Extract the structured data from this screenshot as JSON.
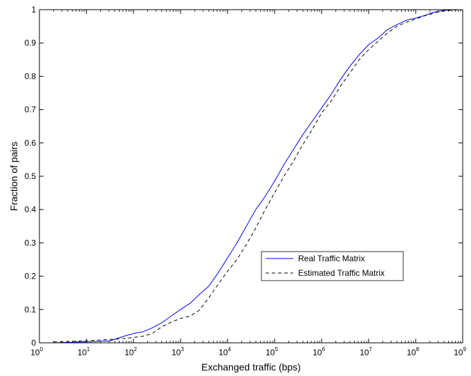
{
  "chart_data": {
    "type": "line",
    "title": "",
    "xlabel": "Exchanged traffic (bps)",
    "ylabel": "Fraction of pairs",
    "xscale": "log",
    "xlim": [
      1,
      1000000000
    ],
    "ylim": [
      0,
      1
    ],
    "grid": false,
    "legend_position": "lower-right",
    "x_ticks": [
      {
        "base": "10",
        "exp": "0",
        "value": 1
      },
      {
        "base": "10",
        "exp": "1",
        "value": 10
      },
      {
        "base": "10",
        "exp": "2",
        "value": 100
      },
      {
        "base": "10",
        "exp": "3",
        "value": 1000
      },
      {
        "base": "10",
        "exp": "4",
        "value": 10000
      },
      {
        "base": "10",
        "exp": "5",
        "value": 100000
      },
      {
        "base": "10",
        "exp": "6",
        "value": 1000000
      },
      {
        "base": "10",
        "exp": "7",
        "value": 10000000
      },
      {
        "base": "10",
        "exp": "8",
        "value": 100000000
      },
      {
        "base": "10",
        "exp": "9",
        "value": 1000000000
      }
    ],
    "y_ticks": [
      "0",
      "0.1",
      "0.2",
      "0.3",
      "0.4",
      "0.5",
      "0.6",
      "0.7",
      "0.8",
      "0.9",
      "1"
    ],
    "series": [
      {
        "name": "Real Traffic Matrix",
        "color": "#0000ff",
        "style": "solid",
        "points": [
          [
            2,
            0
          ],
          [
            10,
            0.003
          ],
          [
            31.6,
            0.006
          ],
          [
            63,
            0.02
          ],
          [
            100,
            0.028
          ],
          [
            158,
            0.033
          ],
          [
            251,
            0.045
          ],
          [
            398,
            0.06
          ],
          [
            631,
            0.08
          ],
          [
            1000,
            0.1
          ],
          [
            1585,
            0.118
          ],
          [
            2512,
            0.145
          ],
          [
            3981,
            0.17
          ],
          [
            6310,
            0.21
          ],
          [
            10000,
            0.255
          ],
          [
            15849,
            0.3
          ],
          [
            25119,
            0.35
          ],
          [
            39811,
            0.4
          ],
          [
            63096,
            0.44
          ],
          [
            100000,
            0.485
          ],
          [
            158489,
            0.535
          ],
          [
            251189,
            0.58
          ],
          [
            398107,
            0.625
          ],
          [
            630957,
            0.665
          ],
          [
            1000000,
            0.705
          ],
          [
            1584893,
            0.745
          ],
          [
            2511886,
            0.79
          ],
          [
            3981072,
            0.83
          ],
          [
            6309573,
            0.865
          ],
          [
            10000000,
            0.895
          ],
          [
            15848932,
            0.915
          ],
          [
            25118864,
            0.94
          ],
          [
            39810717,
            0.955
          ],
          [
            63095734,
            0.968
          ],
          [
            100000000,
            0.975
          ],
          [
            158489319,
            0.983
          ],
          [
            251188643,
            0.993
          ],
          [
            398107171,
            0.998
          ],
          [
            630957344,
            1.0
          ],
          [
            1000000000,
            1.0
          ]
        ]
      },
      {
        "name": "Estimated Traffic Matrix",
        "color": "#000000",
        "style": "dashed",
        "points": [
          [
            2,
            0.003
          ],
          [
            10,
            0.006
          ],
          [
            31.6,
            0.01
          ],
          [
            63,
            0.013
          ],
          [
            100,
            0.016
          ],
          [
            158,
            0.02
          ],
          [
            251,
            0.028
          ],
          [
            398,
            0.048
          ],
          [
            631,
            0.062
          ],
          [
            1000,
            0.073
          ],
          [
            1585,
            0.08
          ],
          [
            2512,
            0.098
          ],
          [
            3981,
            0.135
          ],
          [
            6310,
            0.175
          ],
          [
            10000,
            0.215
          ],
          [
            15849,
            0.25
          ],
          [
            25119,
            0.295
          ],
          [
            39811,
            0.345
          ],
          [
            63096,
            0.4
          ],
          [
            100000,
            0.45
          ],
          [
            158489,
            0.5
          ],
          [
            251189,
            0.545
          ],
          [
            398107,
            0.595
          ],
          [
            630957,
            0.64
          ],
          [
            1000000,
            0.69
          ],
          [
            1584893,
            0.725
          ],
          [
            2511886,
            0.77
          ],
          [
            3981072,
            0.81
          ],
          [
            6309573,
            0.85
          ],
          [
            10000000,
            0.88
          ],
          [
            15848932,
            0.905
          ],
          [
            25118864,
            0.93
          ],
          [
            39810717,
            0.95
          ],
          [
            63095734,
            0.962
          ],
          [
            100000000,
            0.972
          ],
          [
            158489319,
            0.982
          ],
          [
            251188643,
            0.99
          ],
          [
            398107171,
            0.996
          ],
          [
            630957344,
            0.999
          ],
          [
            1000000000,
            1.0
          ]
        ]
      }
    ]
  }
}
